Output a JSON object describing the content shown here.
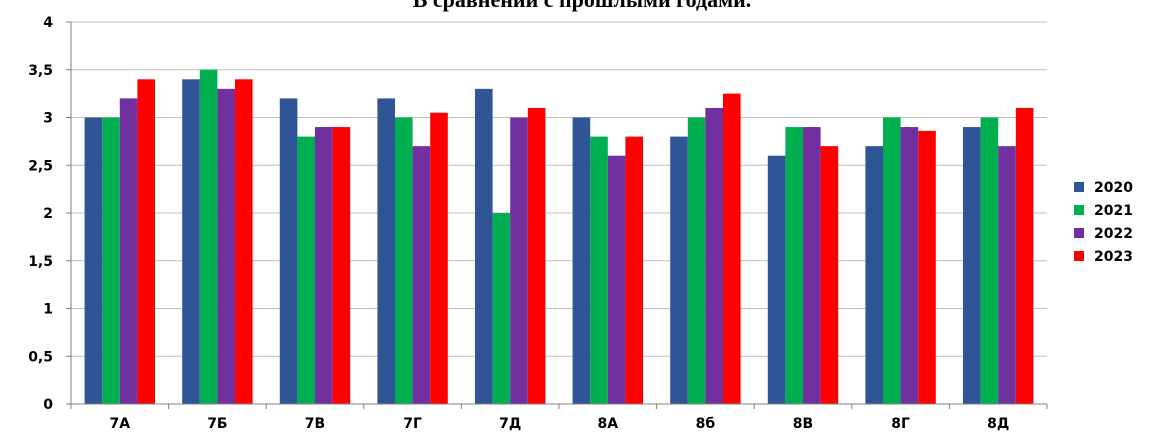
{
  "chart_data": {
    "type": "bar",
    "title": "В сравнении с прошлыми годами.",
    "categories": [
      "7А",
      "7Б",
      "7В",
      "7Г",
      "7Д",
      "8А",
      "8б",
      "8В",
      "8Г",
      "8Д"
    ],
    "series": [
      {
        "name": "2020",
        "color": "#2F5597",
        "values": [
          3.0,
          3.4,
          3.2,
          3.2,
          3.3,
          3.0,
          2.8,
          2.6,
          2.7,
          2.9
        ]
      },
      {
        "name": "2021",
        "color": "#00B050",
        "values": [
          3.0,
          3.5,
          2.8,
          3.0,
          2.0,
          2.8,
          3.0,
          2.9,
          3.0,
          3.0
        ]
      },
      {
        "name": "2022",
        "color": "#7030A0",
        "values": [
          3.2,
          3.3,
          2.9,
          2.7,
          3.0,
          2.6,
          3.1,
          2.9,
          2.9,
          2.7
        ]
      },
      {
        "name": "2023",
        "color": "#FF0000",
        "values": [
          3.4,
          3.4,
          2.9,
          3.05,
          3.1,
          2.8,
          3.25,
          2.7,
          2.86,
          3.1
        ]
      }
    ],
    "yticks": [
      "0",
      "0,5",
      "1",
      "1,5",
      "2",
      "2,5",
      "3",
      "3,5",
      "4"
    ],
    "ylim": [
      0,
      4
    ],
    "grid": true,
    "legend_position": "right"
  }
}
